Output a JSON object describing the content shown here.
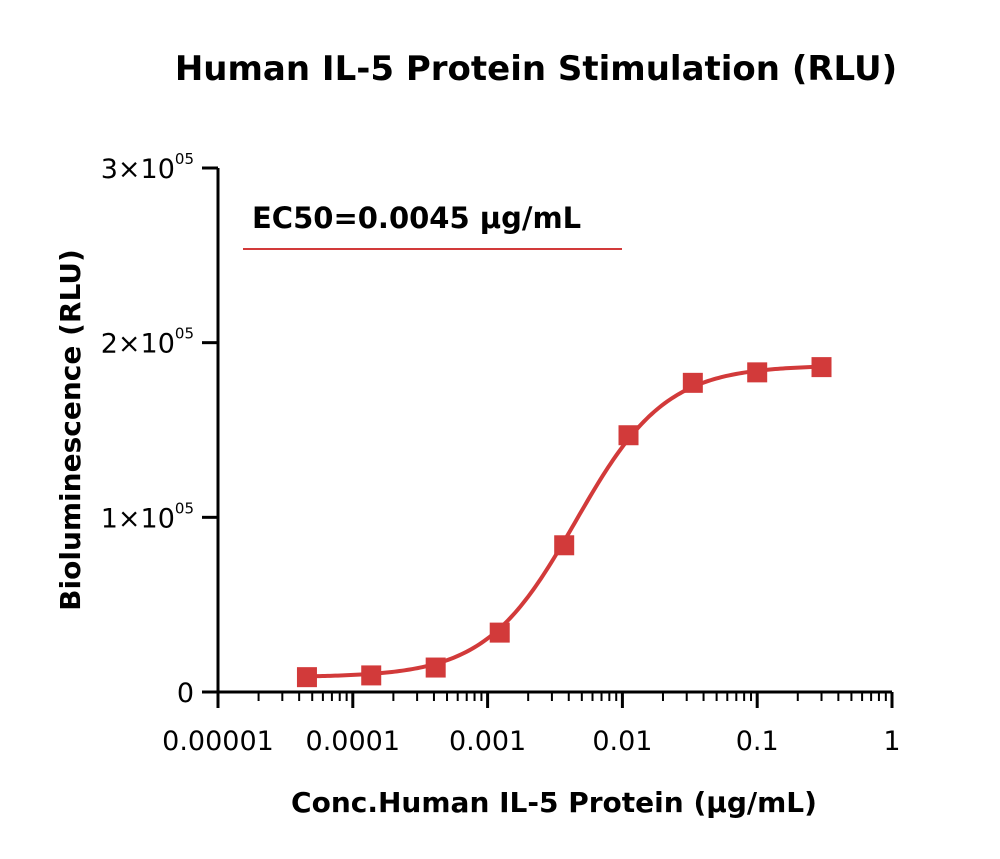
{
  "chart_data": {
    "type": "scatter",
    "title": "Human IL-5 Protein Stimulation (RLU)",
    "xlabel": "Conc.Human IL-5 Protein (μg/mL)",
    "ylabel": "Bioluminescence (RLU)",
    "x_scale": "log",
    "xlim": [
      1e-05,
      1
    ],
    "ylim": [
      0,
      300000
    ],
    "x_ticks": [
      1e-05,
      0.0001,
      0.001,
      0.01,
      0.1,
      1
    ],
    "x_tick_labels": [
      "0.00001",
      "0.0001",
      "0.001",
      "0.01",
      "0.1",
      "1"
    ],
    "y_ticks": [
      {
        "value": 0,
        "text": "0",
        "base": "",
        "exp": ""
      },
      {
        "value": 100000,
        "text": "",
        "base": "1×10",
        "exp": "05"
      },
      {
        "value": 200000,
        "text": "",
        "base": "2×10",
        "exp": "05"
      },
      {
        "value": 300000,
        "text": "",
        "base": "3×10",
        "exp": "05"
      }
    ],
    "annotation": "EC50=0.0045 μg/mL",
    "series": [
      {
        "color": "#d23a3a",
        "points": [
          {
            "x": 4.57e-05,
            "y": 8500
          },
          {
            "x": 0.000137,
            "y": 9500
          },
          {
            "x": 0.000412,
            "y": 14000
          },
          {
            "x": 0.00123,
            "y": 34000
          },
          {
            "x": 0.0037,
            "y": 84000
          },
          {
            "x": 0.0111,
            "y": 147000
          },
          {
            "x": 0.0333,
            "y": 177000
          },
          {
            "x": 0.1,
            "y": 183000
          },
          {
            "x": 0.3,
            "y": 186000
          }
        ],
        "fit": {
          "bottom": 8500,
          "top": 187000,
          "ec50": 0.0045,
          "hill": 1.3
        }
      }
    ],
    "grid": false,
    "legend": "none"
  }
}
